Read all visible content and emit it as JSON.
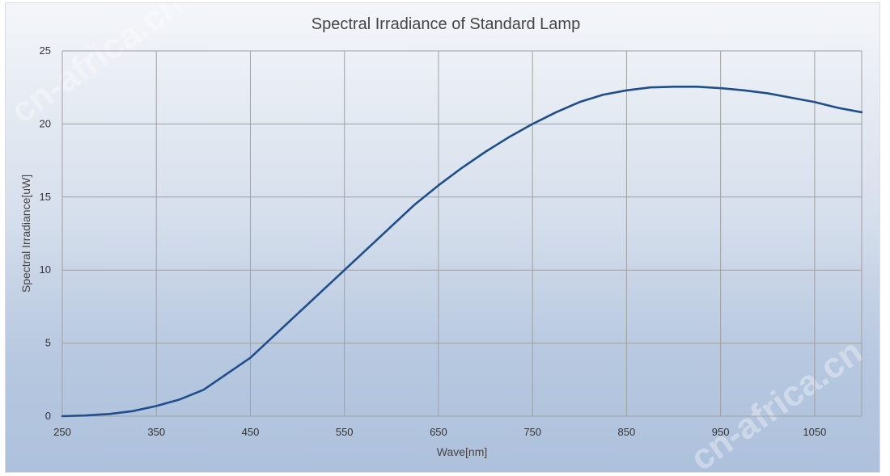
{
  "chart_data": {
    "type": "line",
    "title": "Spectral Irradiance of Standard Lamp",
    "xlabel": "Wave[nm]",
    "ylabel": "Spectral Irradiance[uW]",
    "xlim": [
      250,
      1100
    ],
    "ylim": [
      0,
      25
    ],
    "x_ticks": [
      "250",
      "350",
      "450",
      "550",
      "650",
      "750",
      "850",
      "950",
      "1050"
    ],
    "y_ticks": [
      "0",
      "5",
      "10",
      "15",
      "20",
      "25"
    ],
    "grid": true,
    "line_color": "#1f4e8c",
    "series": [
      {
        "x": [
          250,
          275,
          300,
          325,
          350,
          375,
          400,
          425,
          450,
          475,
          500,
          525,
          550,
          575,
          600,
          625,
          650,
          675,
          700,
          725,
          750,
          775,
          800,
          825,
          850,
          875,
          900,
          925,
          950,
          975,
          1000,
          1025,
          1050,
          1075,
          1100
        ],
        "values": [
          0.0,
          0.05,
          0.15,
          0.35,
          0.7,
          1.15,
          1.8,
          2.9,
          4.0,
          5.5,
          7.0,
          8.5,
          10.0,
          11.5,
          13.0,
          14.5,
          15.8,
          17.0,
          18.1,
          19.1,
          20.0,
          20.8,
          21.5,
          22.0,
          22.3,
          22.5,
          22.55,
          22.55,
          22.45,
          22.3,
          22.1,
          21.8,
          21.5,
          21.1,
          20.8
        ]
      }
    ]
  },
  "watermarks": [
    "cn-africa.cn",
    "cn-africa.cn"
  ]
}
